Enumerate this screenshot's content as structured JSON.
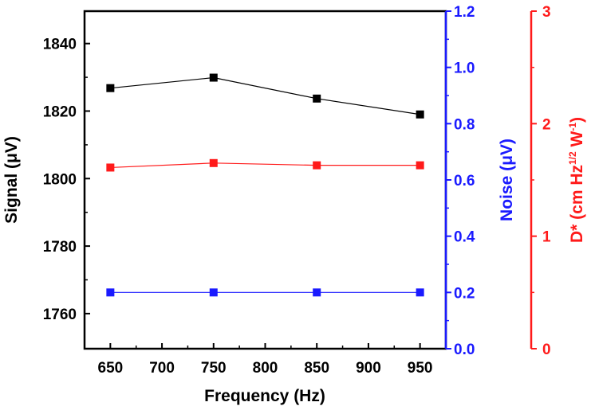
{
  "chart_data": {
    "type": "scatter",
    "xlabel": "Frequency (Hz)",
    "x": [
      650,
      750,
      850,
      950
    ],
    "xlim": [
      625,
      975
    ],
    "xticks": [
      "650",
      "700",
      "750",
      "800",
      "850",
      "900",
      "950"
    ],
    "axes": {
      "signal": {
        "label": "Signal (μV)",
        "lim": [
          1749.6,
          1849.6
        ],
        "ticks": [
          "1760",
          "1780",
          "1800",
          "1820",
          "1840"
        ],
        "color": "#000000"
      },
      "noise": {
        "label": "Noise (μV)",
        "lim": [
          0.0,
          1.2
        ],
        "ticks": [
          "0.0",
          "0.2",
          "0.4",
          "0.6",
          "0.8",
          "1.0",
          "1.2"
        ],
        "color": "#1a1aff"
      },
      "dstar": {
        "label_main": "D* (cm Hz",
        "label_sup1": "1/2",
        "label_mid": " W",
        "label_sup2": "-1",
        "label_end": ")",
        "lim": [
          0,
          3
        ],
        "ticks": [
          "0",
          "1",
          "2",
          "3"
        ],
        "color": "#ff1a1a"
      }
    },
    "series": [
      {
        "axis": "signal",
        "color": "#000000",
        "values": [
          1826.8,
          1829.9,
          1823.7,
          1819.0
        ]
      },
      {
        "axis": "noise",
        "color": "#1a1aff",
        "values": [
          0.2,
          0.2,
          0.2,
          0.2
        ]
      },
      {
        "axis": "dstar",
        "color": "#ff1a1a",
        "values": [
          1.61,
          1.65,
          1.63,
          1.63
        ]
      }
    ]
  }
}
